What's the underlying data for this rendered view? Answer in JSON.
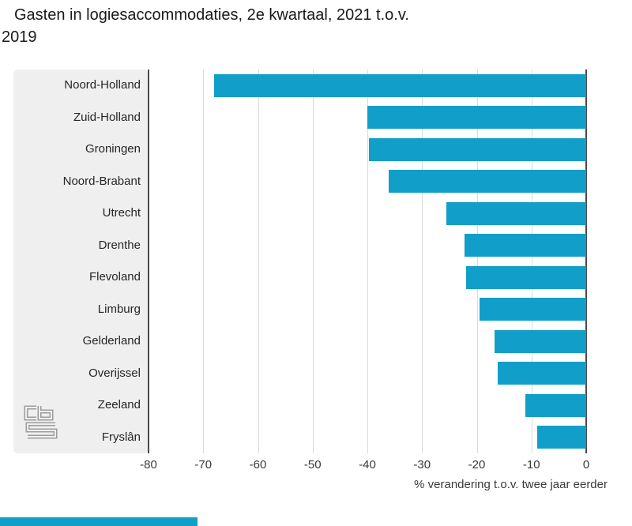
{
  "title": {
    "line1": "Gasten in logiesaccommodaties, 2e kwartaal, 2021 t.o.v.",
    "line2": "2019"
  },
  "chart_data": {
    "type": "bar",
    "orientation": "horizontal",
    "title": "Gasten in logiesaccommodaties, 2e kwartaal, 2021 t.o.v. 2019",
    "categories": [
      "Noord-Holland",
      "Zuid-Holland",
      "Groningen",
      "Noord-Brabant",
      "Utrecht",
      "Drenthe",
      "Flevoland",
      "Limburg",
      "Gelderland",
      "Overijssel",
      "Zeeland",
      "Fryslân"
    ],
    "values": [
      -68,
      -40,
      -39.7,
      -36.1,
      -25.6,
      -22.2,
      -21.9,
      -19.5,
      -16.7,
      -16.2,
      -11.1,
      -8.9
    ],
    "xlabel": "% verandering t.o.v. twee jaar eerder",
    "xlim": [
      -80,
      0
    ],
    "xticks": [
      -80,
      -70,
      -60,
      -50,
      -40,
      -30,
      -20,
      -10,
      0
    ],
    "grid": true,
    "legend": "none",
    "bar_color": "#119fc9"
  },
  "colors": {
    "bar": "#119fc9",
    "panel_background": "#efefef",
    "axis_line": "#4a4a4a",
    "gridline": "#dadada",
    "title_text": "#1a1a1a",
    "label_text": "#262626",
    "logo_gray": "#9c9c9c"
  },
  "branding": {
    "logo_name": "cbs-logo"
  }
}
